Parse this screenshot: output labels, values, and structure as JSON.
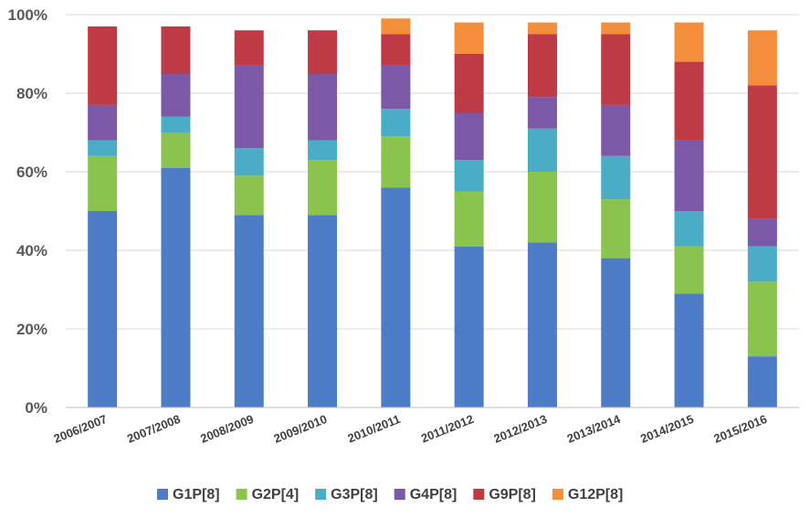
{
  "chart_data": {
    "type": "bar",
    "stacked": true,
    "categories": [
      "2006/2007",
      "2007/2008",
      "2008/2009",
      "2009/2010",
      "2010/2011",
      "2011/2012",
      "2012/2013",
      "2013/2014",
      "2014/2015",
      "2015/2016"
    ],
    "series": [
      {
        "name": "G1P[8]",
        "color": "#4E7CC6",
        "values": [
          50,
          61,
          49,
          49,
          56,
          41,
          42,
          38,
          29,
          13
        ]
      },
      {
        "name": "G2P[4]",
        "color": "#8AC44F",
        "values": [
          14,
          9,
          10,
          14,
          13,
          14,
          18,
          15,
          12,
          19
        ]
      },
      {
        "name": "G3P[8]",
        "color": "#4BACC6",
        "values": [
          4,
          4,
          7,
          5,
          7,
          8,
          11,
          11,
          9,
          9
        ]
      },
      {
        "name": "G4P[8]",
        "color": "#7B58A8",
        "values": [
          9,
          11,
          21,
          17,
          11,
          12,
          8,
          13,
          18,
          7
        ]
      },
      {
        "name": "G9P[8]",
        "color": "#BE3A44",
        "values": [
          20,
          12,
          9,
          11,
          8,
          15,
          16,
          18,
          20,
          34
        ]
      },
      {
        "name": "G12P[8]",
        "color": "#F38E3C",
        "values": [
          0,
          0,
          0,
          0,
          4,
          8,
          3,
          3,
          10,
          14
        ]
      }
    ],
    "y_ticks": [
      "0%",
      "20%",
      "40%",
      "60%",
      "80%",
      "100%"
    ],
    "ylim": [
      0,
      100
    ],
    "grid": true,
    "legend_position": "bottom"
  }
}
